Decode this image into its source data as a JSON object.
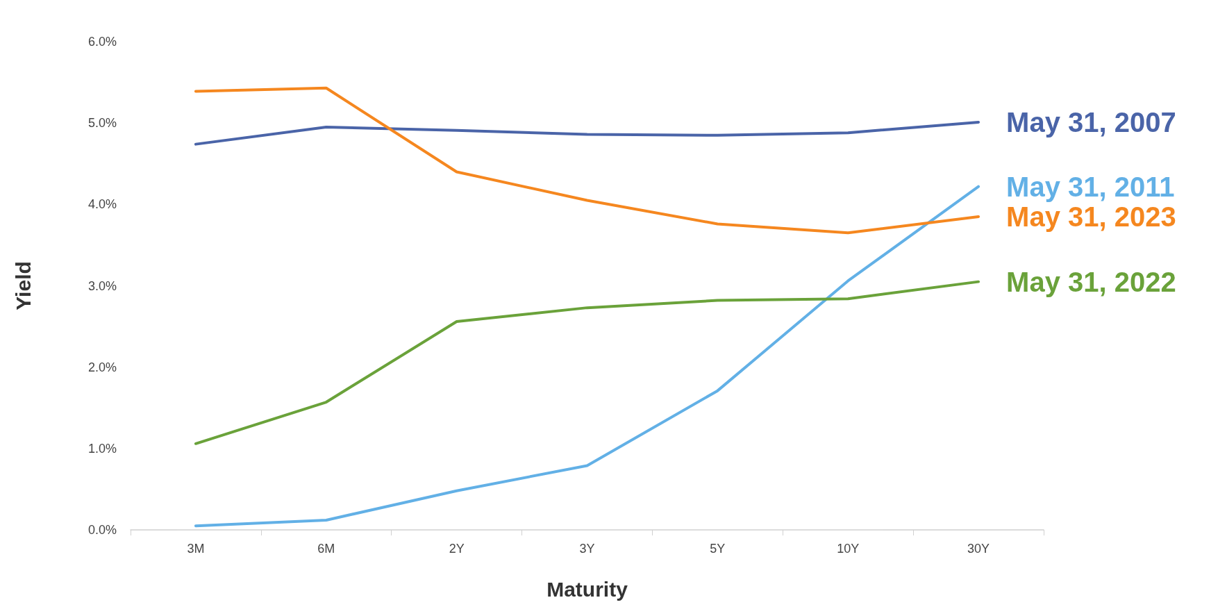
{
  "chart_data": {
    "type": "line",
    "xlabel": "Maturity",
    "ylabel": "Yield",
    "categories": [
      "3M",
      "6M",
      "2Y",
      "3Y",
      "5Y",
      "10Y",
      "30Y"
    ],
    "series": [
      {
        "name": "May 31, 2007",
        "color": "#4a64a8",
        "values": [
          4.74,
          4.95,
          4.91,
          4.86,
          4.85,
          4.88,
          5.01
        ]
      },
      {
        "name": "May 31, 2011",
        "color": "#62b0e6",
        "values": [
          0.05,
          0.12,
          0.48,
          0.79,
          1.71,
          3.06,
          4.22
        ]
      },
      {
        "name": "May 31, 2023",
        "color": "#f5871f",
        "values": [
          5.39,
          5.43,
          4.4,
          4.05,
          3.76,
          3.65,
          3.85
        ]
      },
      {
        "name": "May 31, 2022",
        "color": "#6aa23a",
        "values": [
          1.06,
          1.57,
          2.56,
          2.73,
          2.82,
          2.84,
          3.05
        ]
      }
    ],
    "ylim": [
      0,
      6
    ],
    "yticks": [
      {
        "value": 0,
        "label": "0.0%"
      },
      {
        "value": 1,
        "label": "1.0%"
      },
      {
        "value": 2,
        "label": "2.0%"
      },
      {
        "value": 3,
        "label": "3.0%"
      },
      {
        "value": 4,
        "label": "4.0%"
      },
      {
        "value": 5,
        "label": "5.0%"
      },
      {
        "value": 6,
        "label": "6.0%"
      }
    ],
    "grid": false,
    "legend": false,
    "marker": "none",
    "line_style": "solid"
  }
}
